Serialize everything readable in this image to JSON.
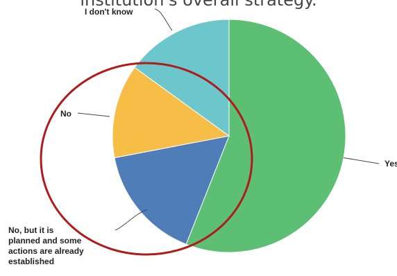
{
  "chart_data": {
    "type": "pie",
    "title": "institution's overall strategy.",
    "start_angle_deg": 0,
    "direction": "clockwise",
    "slices": [
      {
        "label": "Yes",
        "value": 56,
        "color": "#5dbf74"
      },
      {
        "label": "No, but it is planned and some actions are already established",
        "value": 16,
        "color": "#4f7db8"
      },
      {
        "label": "No",
        "value": 13,
        "color": "#f6bd47"
      },
      {
        "label": "I don't know",
        "value": 15,
        "color": "#6bc7cc"
      }
    ],
    "annotation": {
      "shape": "ellipse",
      "color": "#b11a1a"
    }
  }
}
